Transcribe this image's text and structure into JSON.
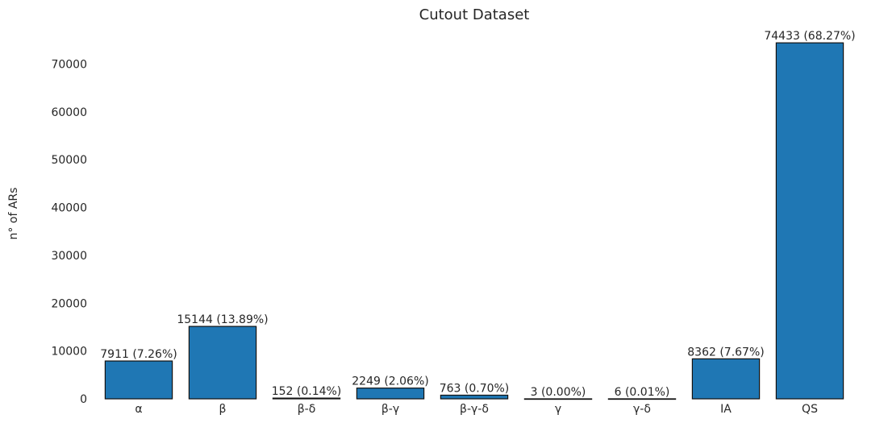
{
  "chart_data": {
    "type": "bar",
    "title": "Cutout Dataset",
    "xlabel": "",
    "ylabel": "n° of ARs",
    "ylim": [
      0,
      78000
    ],
    "yticks": [
      "0",
      "10000",
      "20000",
      "30000",
      "40000",
      "50000",
      "60000",
      "70000"
    ],
    "grid": false,
    "categories": [
      "α",
      "β",
      "β-δ",
      "β-γ",
      "β-γ-δ",
      "γ",
      "γ-δ",
      "IA",
      "QS"
    ],
    "values": [
      7911,
      15144,
      152,
      2249,
      763,
      3,
      6,
      8362,
      74433
    ],
    "data_labels": [
      "7911 (7.26%)",
      "15144 (13.89%)",
      "152 (0.14%)",
      "2249 (2.06%)",
      "763 (0.70%)",
      "3 (0.00%)",
      "6 (0.01%)",
      "8362 (7.67%)",
      "74433 (68.27%)"
    ],
    "colors": {
      "bar": "#1f77b4",
      "edge": "#111111",
      "text": "#262626"
    }
  }
}
